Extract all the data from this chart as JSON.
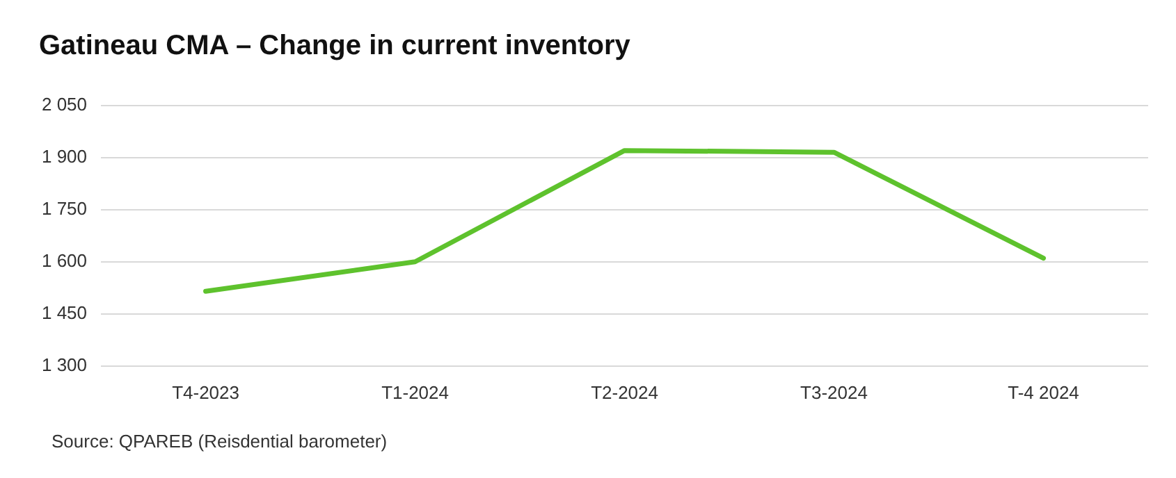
{
  "chart_data": {
    "type": "line",
    "title": "Gatineau CMA – Change in current inventory",
    "categories": [
      "T4-2023",
      "T1-2024",
      "T2-2024",
      "T3-2024",
      "T-4 2024"
    ],
    "series": [
      {
        "color": "#5ec22d",
        "values": [
          1515,
          1600,
          1920,
          1915,
          1610
        ]
      }
    ],
    "ylim": [
      1300,
      2050
    ],
    "yticks": [
      {
        "value": 1300,
        "label": "1 300"
      },
      {
        "value": 1450,
        "label": "1 450"
      },
      {
        "value": 1600,
        "label": "1 600"
      },
      {
        "value": 1750,
        "label": "1 750"
      },
      {
        "value": 1900,
        "label": "1 900"
      },
      {
        "value": 2050,
        "label": "2 050"
      }
    ],
    "grid": "y",
    "legend": false,
    "marker": "none",
    "line_style": "solid",
    "annotations": [
      "Source: QPAREB (Reisdential barometer)"
    ]
  }
}
